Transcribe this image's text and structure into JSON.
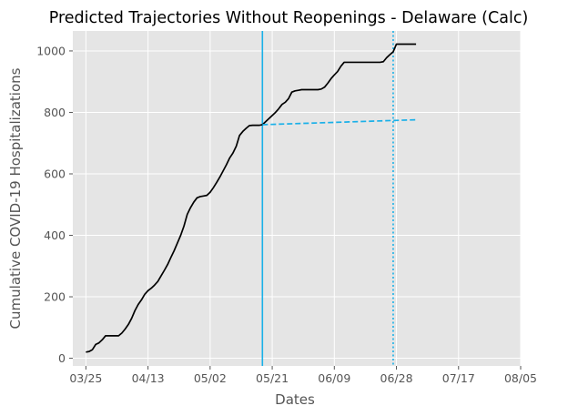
{
  "chart_data": {
    "type": "line",
    "title": "Predicted Trajectories Without Reopenings - Delaware (Calc)",
    "xlabel": "Dates",
    "ylabel": "Cumulative COVID-19 Hospitalizations",
    "x_type": "date",
    "xlim": [
      "2020-03-21",
      "2020-08-05"
    ],
    "ylim": [
      -25,
      1065
    ],
    "x_ticks": [
      {
        "date": "2020-03-25",
        "label": "03/25"
      },
      {
        "date": "2020-04-13",
        "label": "04/13"
      },
      {
        "date": "2020-05-02",
        "label": "05/02"
      },
      {
        "date": "2020-05-21",
        "label": "05/21"
      },
      {
        "date": "2020-06-09",
        "label": "06/09"
      },
      {
        "date": "2020-06-28",
        "label": "06/28"
      },
      {
        "date": "2020-07-17",
        "label": "07/17"
      },
      {
        "date": "2020-08-05",
        "label": "08/05"
      }
    ],
    "y_ticks": [
      0,
      200,
      400,
      600,
      800,
      1000
    ],
    "grid": true,
    "background": "#e5e5e5",
    "series": [
      {
        "style": "solid",
        "color": "#000000",
        "points": [
          [
            "2020-03-25",
            20
          ],
          [
            "2020-03-26",
            22
          ],
          [
            "2020-03-27",
            28
          ],
          [
            "2020-03-28",
            45
          ],
          [
            "2020-03-29",
            50
          ],
          [
            "2020-03-30",
            60
          ],
          [
            "2020-03-31",
            73
          ],
          [
            "2020-04-01",
            73
          ],
          [
            "2020-04-02",
            73
          ],
          [
            "2020-04-03",
            73
          ],
          [
            "2020-04-04",
            73
          ],
          [
            "2020-04-05",
            82
          ],
          [
            "2020-04-06",
            95
          ],
          [
            "2020-04-07",
            110
          ],
          [
            "2020-04-08",
            130
          ],
          [
            "2020-04-09",
            155
          ],
          [
            "2020-04-10",
            175
          ],
          [
            "2020-04-11",
            190
          ],
          [
            "2020-04-12",
            208
          ],
          [
            "2020-04-13",
            220
          ],
          [
            "2020-04-14",
            228
          ],
          [
            "2020-04-15",
            238
          ],
          [
            "2020-04-16",
            250
          ],
          [
            "2020-04-17",
            268
          ],
          [
            "2020-04-18",
            286
          ],
          [
            "2020-04-19",
            305
          ],
          [
            "2020-04-20",
            328
          ],
          [
            "2020-04-21",
            350
          ],
          [
            "2020-04-22",
            375
          ],
          [
            "2020-04-23",
            400
          ],
          [
            "2020-04-24",
            430
          ],
          [
            "2020-04-25",
            468
          ],
          [
            "2020-04-26",
            490
          ],
          [
            "2020-04-27",
            508
          ],
          [
            "2020-04-28",
            522
          ],
          [
            "2020-04-29",
            526
          ],
          [
            "2020-04-30",
            528
          ],
          [
            "2020-05-01",
            530
          ],
          [
            "2020-05-02",
            540
          ],
          [
            "2020-05-03",
            555
          ],
          [
            "2020-05-04",
            572
          ],
          [
            "2020-05-05",
            590
          ],
          [
            "2020-05-06",
            610
          ],
          [
            "2020-05-07",
            630
          ],
          [
            "2020-05-08",
            652
          ],
          [
            "2020-05-09",
            668
          ],
          [
            "2020-05-10",
            690
          ],
          [
            "2020-05-11",
            725
          ],
          [
            "2020-05-12",
            738
          ],
          [
            "2020-05-13",
            748
          ],
          [
            "2020-05-14",
            757
          ],
          [
            "2020-05-15",
            758
          ],
          [
            "2020-05-16",
            758
          ],
          [
            "2020-05-17",
            758
          ],
          [
            "2020-05-18",
            760
          ],
          [
            "2020-05-19",
            770
          ],
          [
            "2020-05-20",
            780
          ],
          [
            "2020-05-21",
            790
          ],
          [
            "2020-05-22",
            800
          ],
          [
            "2020-05-23",
            812
          ],
          [
            "2020-05-24",
            826
          ],
          [
            "2020-05-25",
            833
          ],
          [
            "2020-05-26",
            845
          ],
          [
            "2020-05-27",
            866
          ],
          [
            "2020-05-28",
            870
          ],
          [
            "2020-05-29",
            872
          ],
          [
            "2020-05-30",
            874
          ],
          [
            "2020-05-31",
            874
          ],
          [
            "2020-06-01",
            874
          ],
          [
            "2020-06-02",
            874
          ],
          [
            "2020-06-03",
            874
          ],
          [
            "2020-06-04",
            874
          ],
          [
            "2020-06-05",
            876
          ],
          [
            "2020-06-06",
            882
          ],
          [
            "2020-06-07",
            895
          ],
          [
            "2020-06-08",
            910
          ],
          [
            "2020-06-09",
            922
          ],
          [
            "2020-06-10",
            933
          ],
          [
            "2020-06-11",
            950
          ],
          [
            "2020-06-12",
            963
          ],
          [
            "2020-06-13",
            963
          ],
          [
            "2020-06-14",
            963
          ],
          [
            "2020-06-15",
            963
          ],
          [
            "2020-06-16",
            963
          ],
          [
            "2020-06-17",
            963
          ],
          [
            "2020-06-18",
            963
          ],
          [
            "2020-06-19",
            963
          ],
          [
            "2020-06-20",
            963
          ],
          [
            "2020-06-21",
            963
          ],
          [
            "2020-06-22",
            963
          ],
          [
            "2020-06-23",
            963
          ],
          [
            "2020-06-24",
            965
          ],
          [
            "2020-06-25",
            978
          ],
          [
            "2020-06-26",
            988
          ],
          [
            "2020-06-27",
            997
          ],
          [
            "2020-06-28",
            1022
          ],
          [
            "2020-06-29",
            1022
          ],
          [
            "2020-06-30",
            1022
          ],
          [
            "2020-07-01",
            1022
          ],
          [
            "2020-07-02",
            1022
          ],
          [
            "2020-07-03",
            1022
          ],
          [
            "2020-07-04",
            1022
          ]
        ]
      },
      {
        "style": "dashed",
        "color": "#1ab0e8",
        "points": [
          [
            "2020-05-18",
            760
          ],
          [
            "2020-07-04",
            776
          ]
        ]
      }
    ],
    "vlines": [
      {
        "date": "2020-05-18",
        "style": "solid",
        "color": "#1ab0e8"
      },
      {
        "date": "2020-06-27",
        "style": "dotted",
        "color": "#1ab0e8"
      }
    ]
  }
}
